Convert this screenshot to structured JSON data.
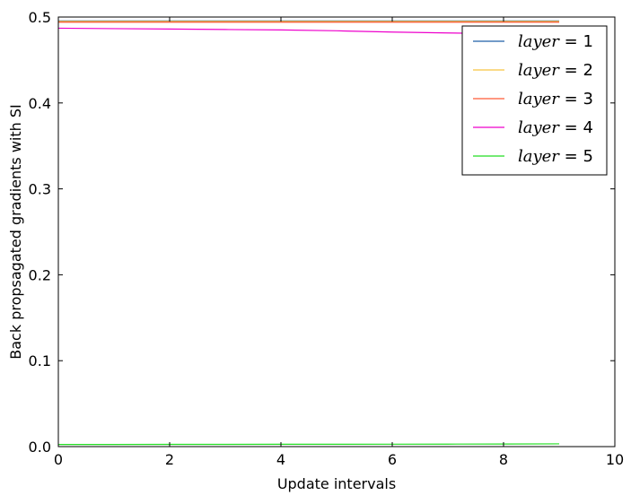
{
  "chart_data": {
    "type": "line",
    "xlabel": "Update intervals",
    "ylabel": "Back propsagated gradients with SI",
    "xlim": [
      0,
      10
    ],
    "ylim": [
      0.0,
      0.5
    ],
    "xticks": [
      0,
      2,
      4,
      6,
      8,
      10
    ],
    "xtick_labels": [
      "0",
      "2",
      "4",
      "6",
      "8",
      "10"
    ],
    "yticks": [
      0.0,
      0.1,
      0.2,
      0.3,
      0.4,
      0.5
    ],
    "ytick_labels": [
      "0.0",
      "0.1",
      "0.2",
      "0.3",
      "0.4",
      "0.5"
    ],
    "grid": false,
    "legend_position": "top-right",
    "x": [
      0,
      1,
      2,
      3,
      4,
      5,
      6,
      7,
      8,
      9
    ],
    "series": [
      {
        "name": "layer = 1",
        "name_var": "layer",
        "name_value": "1",
        "color": "#1f5fa8",
        "values": [
          0.4955,
          0.4955,
          0.4955,
          0.4955,
          0.4955,
          0.4955,
          0.4955,
          0.4955,
          0.4955,
          0.4955
        ]
      },
      {
        "name": "layer = 2",
        "name_var": "layer",
        "name_value": "2",
        "color": "#f6c342",
        "values": [
          0.495,
          0.495,
          0.495,
          0.495,
          0.495,
          0.495,
          0.495,
          0.495,
          0.495,
          0.495
        ]
      },
      {
        "name": "layer = 3",
        "name_var": "layer",
        "name_value": "3",
        "color": "#ff5a36",
        "values": [
          0.494,
          0.494,
          0.494,
          0.494,
          0.494,
          0.494,
          0.494,
          0.494,
          0.494,
          0.494
        ]
      },
      {
        "name": "layer = 4",
        "name_var": "layer",
        "name_value": "4",
        "color": "#ee00cc",
        "values": [
          0.487,
          0.4865,
          0.486,
          0.4855,
          0.485,
          0.484,
          0.4825,
          0.4815,
          0.4805,
          0.4795
        ]
      },
      {
        "name": "layer = 5",
        "name_var": "layer",
        "name_value": "5",
        "color": "#22dd22",
        "values": [
          0.0025,
          0.0025,
          0.0026,
          0.0026,
          0.0027,
          0.0027,
          0.0028,
          0.0029,
          0.003,
          0.0032
        ]
      }
    ]
  }
}
